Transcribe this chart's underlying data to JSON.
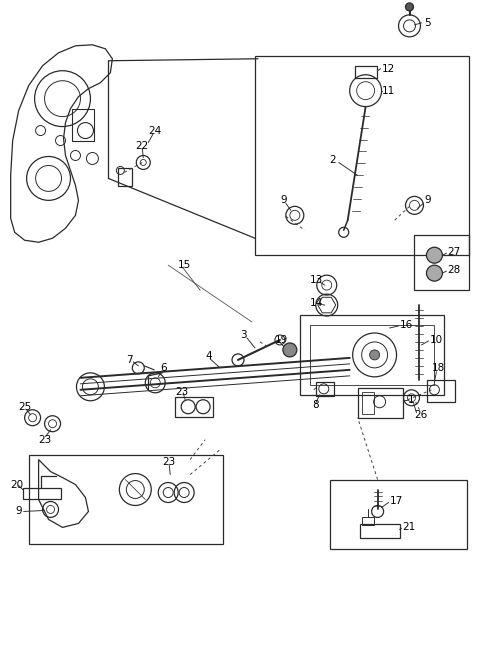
{
  "bg_color": "#ffffff",
  "line_color": "#2a2a2a",
  "fig_width": 4.8,
  "fig_height": 6.46,
  "dpi": 100
}
